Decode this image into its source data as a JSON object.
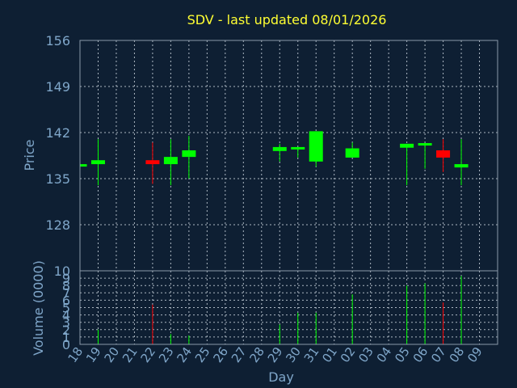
{
  "chart_data": {
    "type": "candlestick",
    "title": "SDV - last updated 08/01/2026",
    "xlabel": "Day",
    "colors": {
      "up": "#00ff00",
      "down": "#ff0000",
      "background": "#0e1f33",
      "text": "#7fa6c9",
      "title": "#ffff33"
    },
    "x_ticks": [
      "18",
      "19",
      "20",
      "21",
      "22",
      "23",
      "24",
      "25",
      "26",
      "27",
      "28",
      "29",
      "30",
      "31",
      "01",
      "02",
      "03",
      "04",
      "05",
      "06",
      "07",
      "08",
      "09"
    ],
    "price_panel": {
      "ylabel": "Price",
      "ylim": [
        121,
        156
      ],
      "y_ticks": [
        "156",
        "149",
        "142",
        "135",
        "128"
      ],
      "grid": true
    },
    "volume_panel": {
      "ylabel": "Volume (0000)",
      "ylim": [
        0,
        10
      ],
      "y_ticks": [
        "10",
        "9",
        "8",
        "7",
        "6",
        "5",
        "4",
        "3",
        "2",
        "1",
        "0"
      ],
      "grid": true
    },
    "series": [
      {
        "day": "18",
        "open": 137.0,
        "high": 137.2,
        "low": 136.9,
        "close": 137.2,
        "volume": 0.1
      },
      {
        "day": "19",
        "open": 137.2,
        "high": 141.0,
        "low": 134.0,
        "close": 137.8,
        "volume": 2.0
      },
      {
        "day": "22",
        "open": 137.8,
        "high": 140.5,
        "low": 134.2,
        "close": 137.2,
        "volume": 5.4
      },
      {
        "day": "23",
        "open": 137.2,
        "high": 141.0,
        "low": 134.0,
        "close": 138.3,
        "volume": 1.4
      },
      {
        "day": "24",
        "open": 138.3,
        "high": 141.5,
        "low": 135.0,
        "close": 139.3,
        "volume": 1.2
      },
      {
        "day": "29",
        "open": 139.2,
        "high": 140.3,
        "low": 137.6,
        "close": 139.8,
        "volume": 2.7
      },
      {
        "day": "30",
        "open": 139.6,
        "high": 139.8,
        "low": 138.2,
        "close": 139.8,
        "volume": 4.3
      },
      {
        "day": "31",
        "open": 137.6,
        "high": 142.2,
        "low": 136.8,
        "close": 142.2,
        "volume": 4.3
      },
      {
        "day": "02",
        "open": 138.2,
        "high": 140.5,
        "low": 138.2,
        "close": 139.6,
        "volume": 6.8
      },
      {
        "day": "05",
        "open": 139.7,
        "high": 140.3,
        "low": 134.0,
        "close": 140.3,
        "volume": 8.0
      },
      {
        "day": "06",
        "open": 140.2,
        "high": 140.4,
        "low": 136.5,
        "close": 140.4,
        "volume": 8.3
      },
      {
        "day": "07",
        "open": 139.3,
        "high": 141.0,
        "low": 136.0,
        "close": 138.2,
        "volume": 5.7
      },
      {
        "day": "08",
        "open": 136.7,
        "high": 141.0,
        "low": 134.0,
        "close": 137.2,
        "volume": 9.3
      }
    ]
  }
}
